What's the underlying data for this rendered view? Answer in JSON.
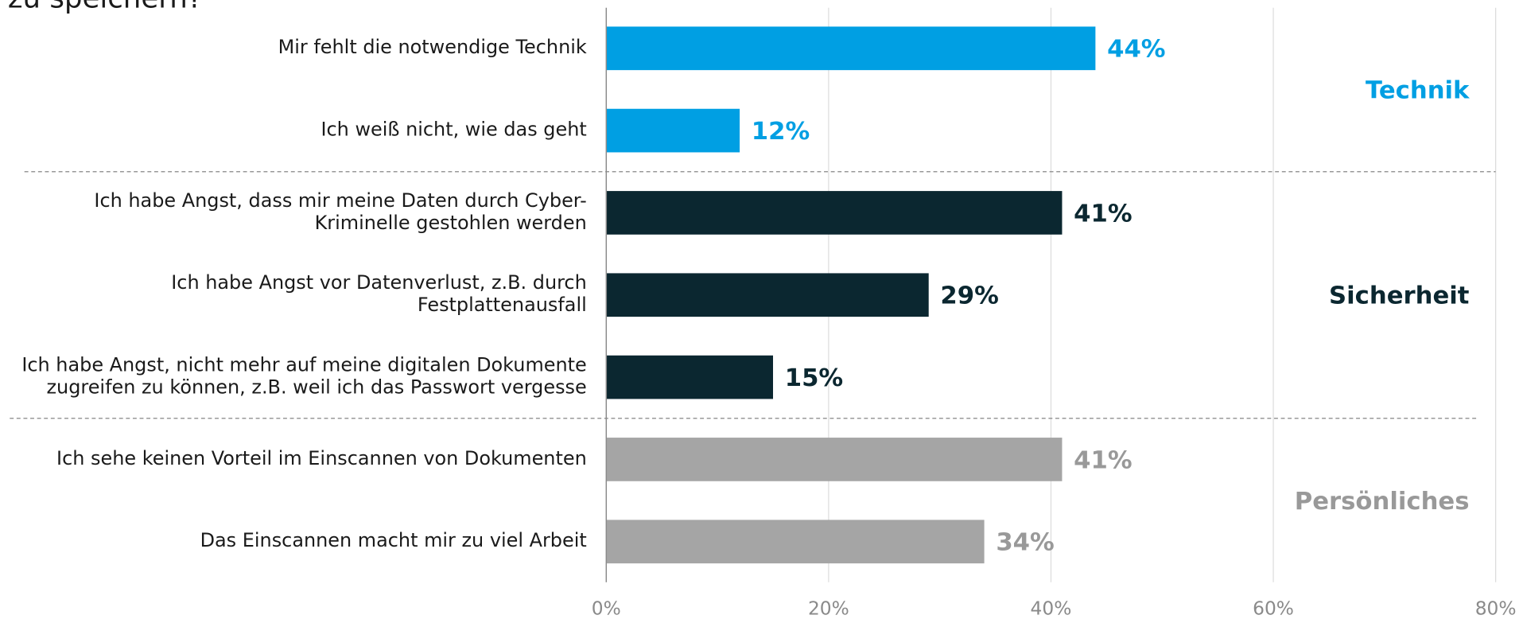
{
  "chart_data": {
    "type": "bar",
    "orientation": "horizontal",
    "title": "zu speichern?",
    "series": [
      {
        "name": "Technik",
        "color": "#009fe3",
        "categories": [
          [
            "Mir fehlt die notwendige Technik"
          ],
          [
            "Ich weiß nicht, wie das geht"
          ]
        ],
        "values": [
          44,
          12
        ],
        "value_labels": [
          "44%",
          "12%"
        ]
      },
      {
        "name": "Sicherheit",
        "color": "#0b2730",
        "categories": [
          [
            "Ich habe Angst, dass mir meine Daten durch Cyber-",
            "Kriminelle gestohlen werden"
          ],
          [
            "Ich habe Angst vor Datenverlust, z.B. durch",
            "Festplattenausfall"
          ],
          [
            "Ich habe Angst, nicht mehr auf meine digitalen Dokumente",
            "zugreifen zu können, z.B. weil ich das Passwort vergesse"
          ]
        ],
        "values": [
          41,
          29,
          15
        ],
        "value_labels": [
          "41%",
          "29%",
          "15%"
        ]
      },
      {
        "name": "Persönliches",
        "color": "#a5a5a5",
        "label_color": "#999999",
        "categories": [
          [
            "Ich sehe keinen Vorteil im Einscannen von Dokumenten"
          ],
          [
            "Das Einscannen macht mir zu viel Arbeit"
          ]
        ],
        "values": [
          41,
          34
        ],
        "value_labels": [
          "41%",
          "34%"
        ]
      }
    ],
    "xlim": [
      0,
      80
    ],
    "xticks": [
      {
        "value": 0,
        "label": "0%"
      },
      {
        "value": 20,
        "label": "20%"
      },
      {
        "value": 40,
        "label": "40%"
      },
      {
        "value": 60,
        "label": "60%"
      },
      {
        "value": 80,
        "label": "80%"
      }
    ],
    "grid": true
  }
}
